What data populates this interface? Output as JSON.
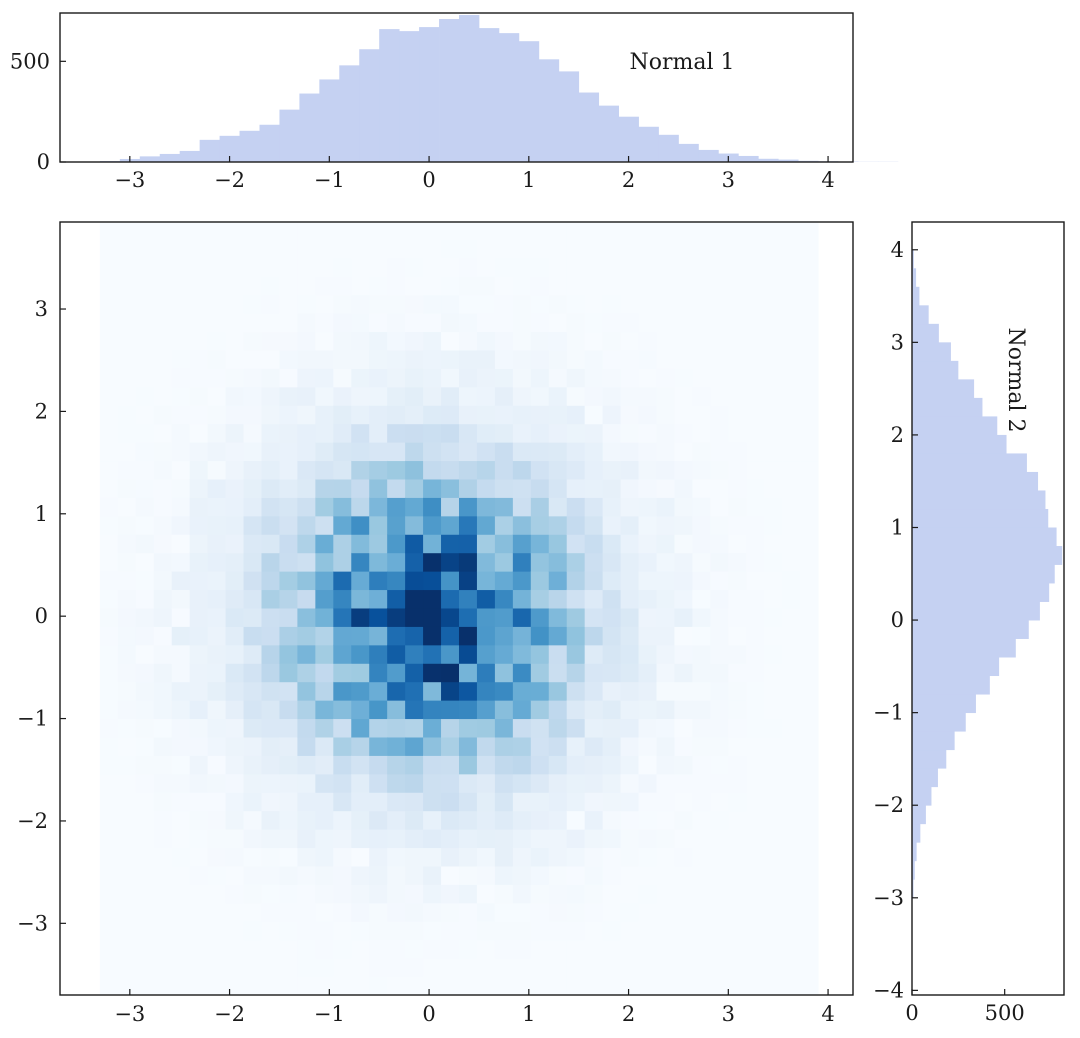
{
  "chart_data": [
    {
      "id": "top-histogram",
      "type": "bar",
      "label": "Normal 1",
      "x_ticks": [
        -3,
        -2,
        -1,
        0,
        1,
        2,
        3,
        4
      ],
      "y_ticks": [
        0,
        500
      ],
      "xlim": [
        -3.7,
        4.25
      ],
      "ylim": [
        0,
        740
      ],
      "bin_start": -3.3,
      "bin_width": 0.2,
      "color": "#c5d1f2",
      "counts": [
        5,
        15,
        28,
        40,
        55,
        110,
        130,
        155,
        185,
        260,
        340,
        410,
        480,
        560,
        660,
        650,
        670,
        710,
        730,
        665,
        640,
        600,
        510,
        450,
        345,
        280,
        225,
        175,
        135,
        90,
        60,
        42,
        30,
        16,
        12,
        6,
        4,
        2,
        1,
        1
      ]
    },
    {
      "id": "joint-2d-histogram",
      "type": "heatmap",
      "x_ticks": [
        -3,
        -2,
        -1,
        0,
        1,
        2,
        3,
        4
      ],
      "y_ticks": [
        -3,
        -2,
        -1,
        0,
        1,
        2,
        3
      ],
      "xlim": [
        -3.7,
        4.25
      ],
      "ylim": [
        -3.7,
        3.85
      ],
      "bin_range_x": [
        -3.3,
        3.85
      ],
      "bin_range_y": [
        -3.7,
        3.85
      ],
      "cell_size": 0.18,
      "colormap": "Blues"
    },
    {
      "id": "right-histogram",
      "type": "bar",
      "orientation": "horizontal",
      "label": "Normal 2",
      "x_ticks": [
        0,
        500
      ],
      "y_ticks": [
        -4,
        -3,
        -2,
        -1,
        0,
        1,
        2,
        3,
        4
      ],
      "xlim": [
        0,
        820
      ],
      "ylim": [
        -4.05,
        4.3
      ],
      "bin_start": -3.0,
      "bin_width": 0.2,
      "color": "#c5d1f2",
      "counts": [
        8,
        15,
        25,
        45,
        75,
        105,
        140,
        185,
        230,
        290,
        345,
        420,
        470,
        560,
        630,
        690,
        740,
        770,
        810,
        780,
        735,
        720,
        680,
        620,
        510,
        460,
        380,
        335,
        250,
        210,
        145,
        90,
        40,
        22,
        10
      ]
    }
  ]
}
